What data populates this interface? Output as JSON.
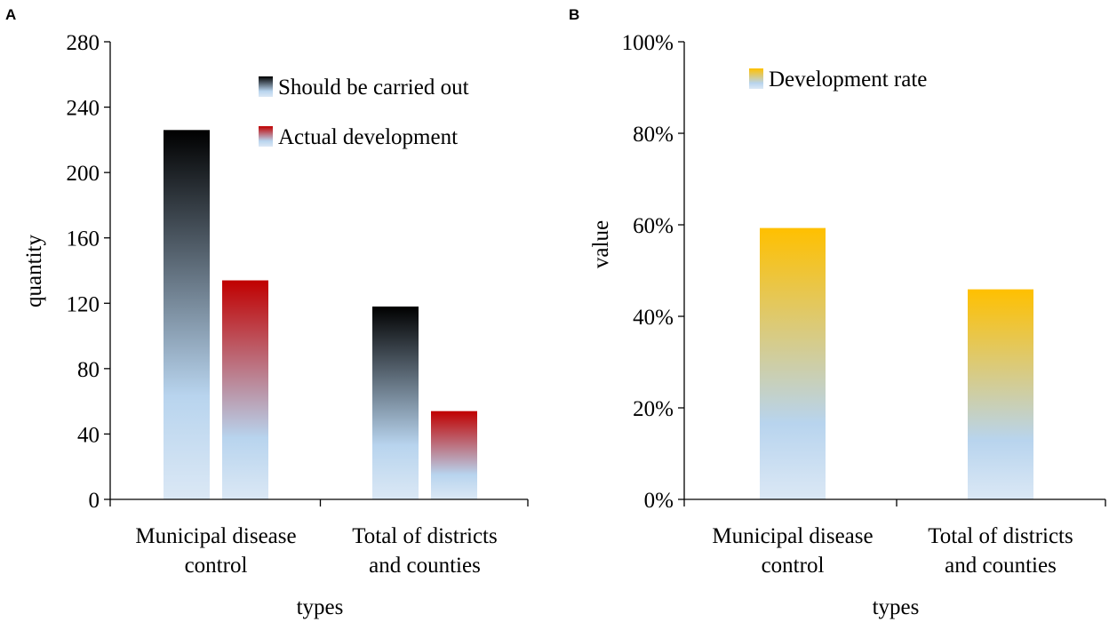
{
  "chart_data": [
    {
      "panel": "A",
      "type": "bar",
      "title": "",
      "xlabel": "types",
      "ylabel": "quantity",
      "ylim": [
        0,
        280
      ],
      "yticks": [
        0,
        40,
        80,
        120,
        160,
        200,
        240,
        280
      ],
      "ytick_labels": [
        "0",
        "40",
        "80",
        "120",
        "160",
        "200",
        "240",
        "280"
      ],
      "categories": [
        [
          "Municipal disease",
          "control"
        ],
        [
          "Total of districts",
          "and counties"
        ]
      ],
      "series": [
        {
          "name": "Should be carried out",
          "values": [
            226,
            118
          ],
          "colors": [
            "#000000",
            "#b8d4ee"
          ]
        },
        {
          "name": "Actual development",
          "values": [
            134,
            54
          ],
          "colors": [
            "#c00000",
            "#b8d4ee"
          ]
        }
      ],
      "legend": "top-right",
      "grid": false
    },
    {
      "panel": "B",
      "type": "bar",
      "title": "",
      "xlabel": "types",
      "ylabel": "value",
      "ylim": [
        0,
        1
      ],
      "yticks": [
        0,
        0.2,
        0.4,
        0.6,
        0.8,
        1.0
      ],
      "ytick_labels": [
        "0%",
        "20%",
        "40%",
        "60%",
        "80%",
        "100%"
      ],
      "categories": [
        [
          "Municipal disease",
          "control"
        ],
        [
          "Total of districts",
          "and counties"
        ]
      ],
      "series": [
        {
          "name": "Development rate",
          "values": [
            0.593,
            0.459
          ],
          "colors": [
            "#ffc000",
            "#b8d4ee"
          ]
        }
      ],
      "legend": "top-left",
      "grid": false
    }
  ]
}
